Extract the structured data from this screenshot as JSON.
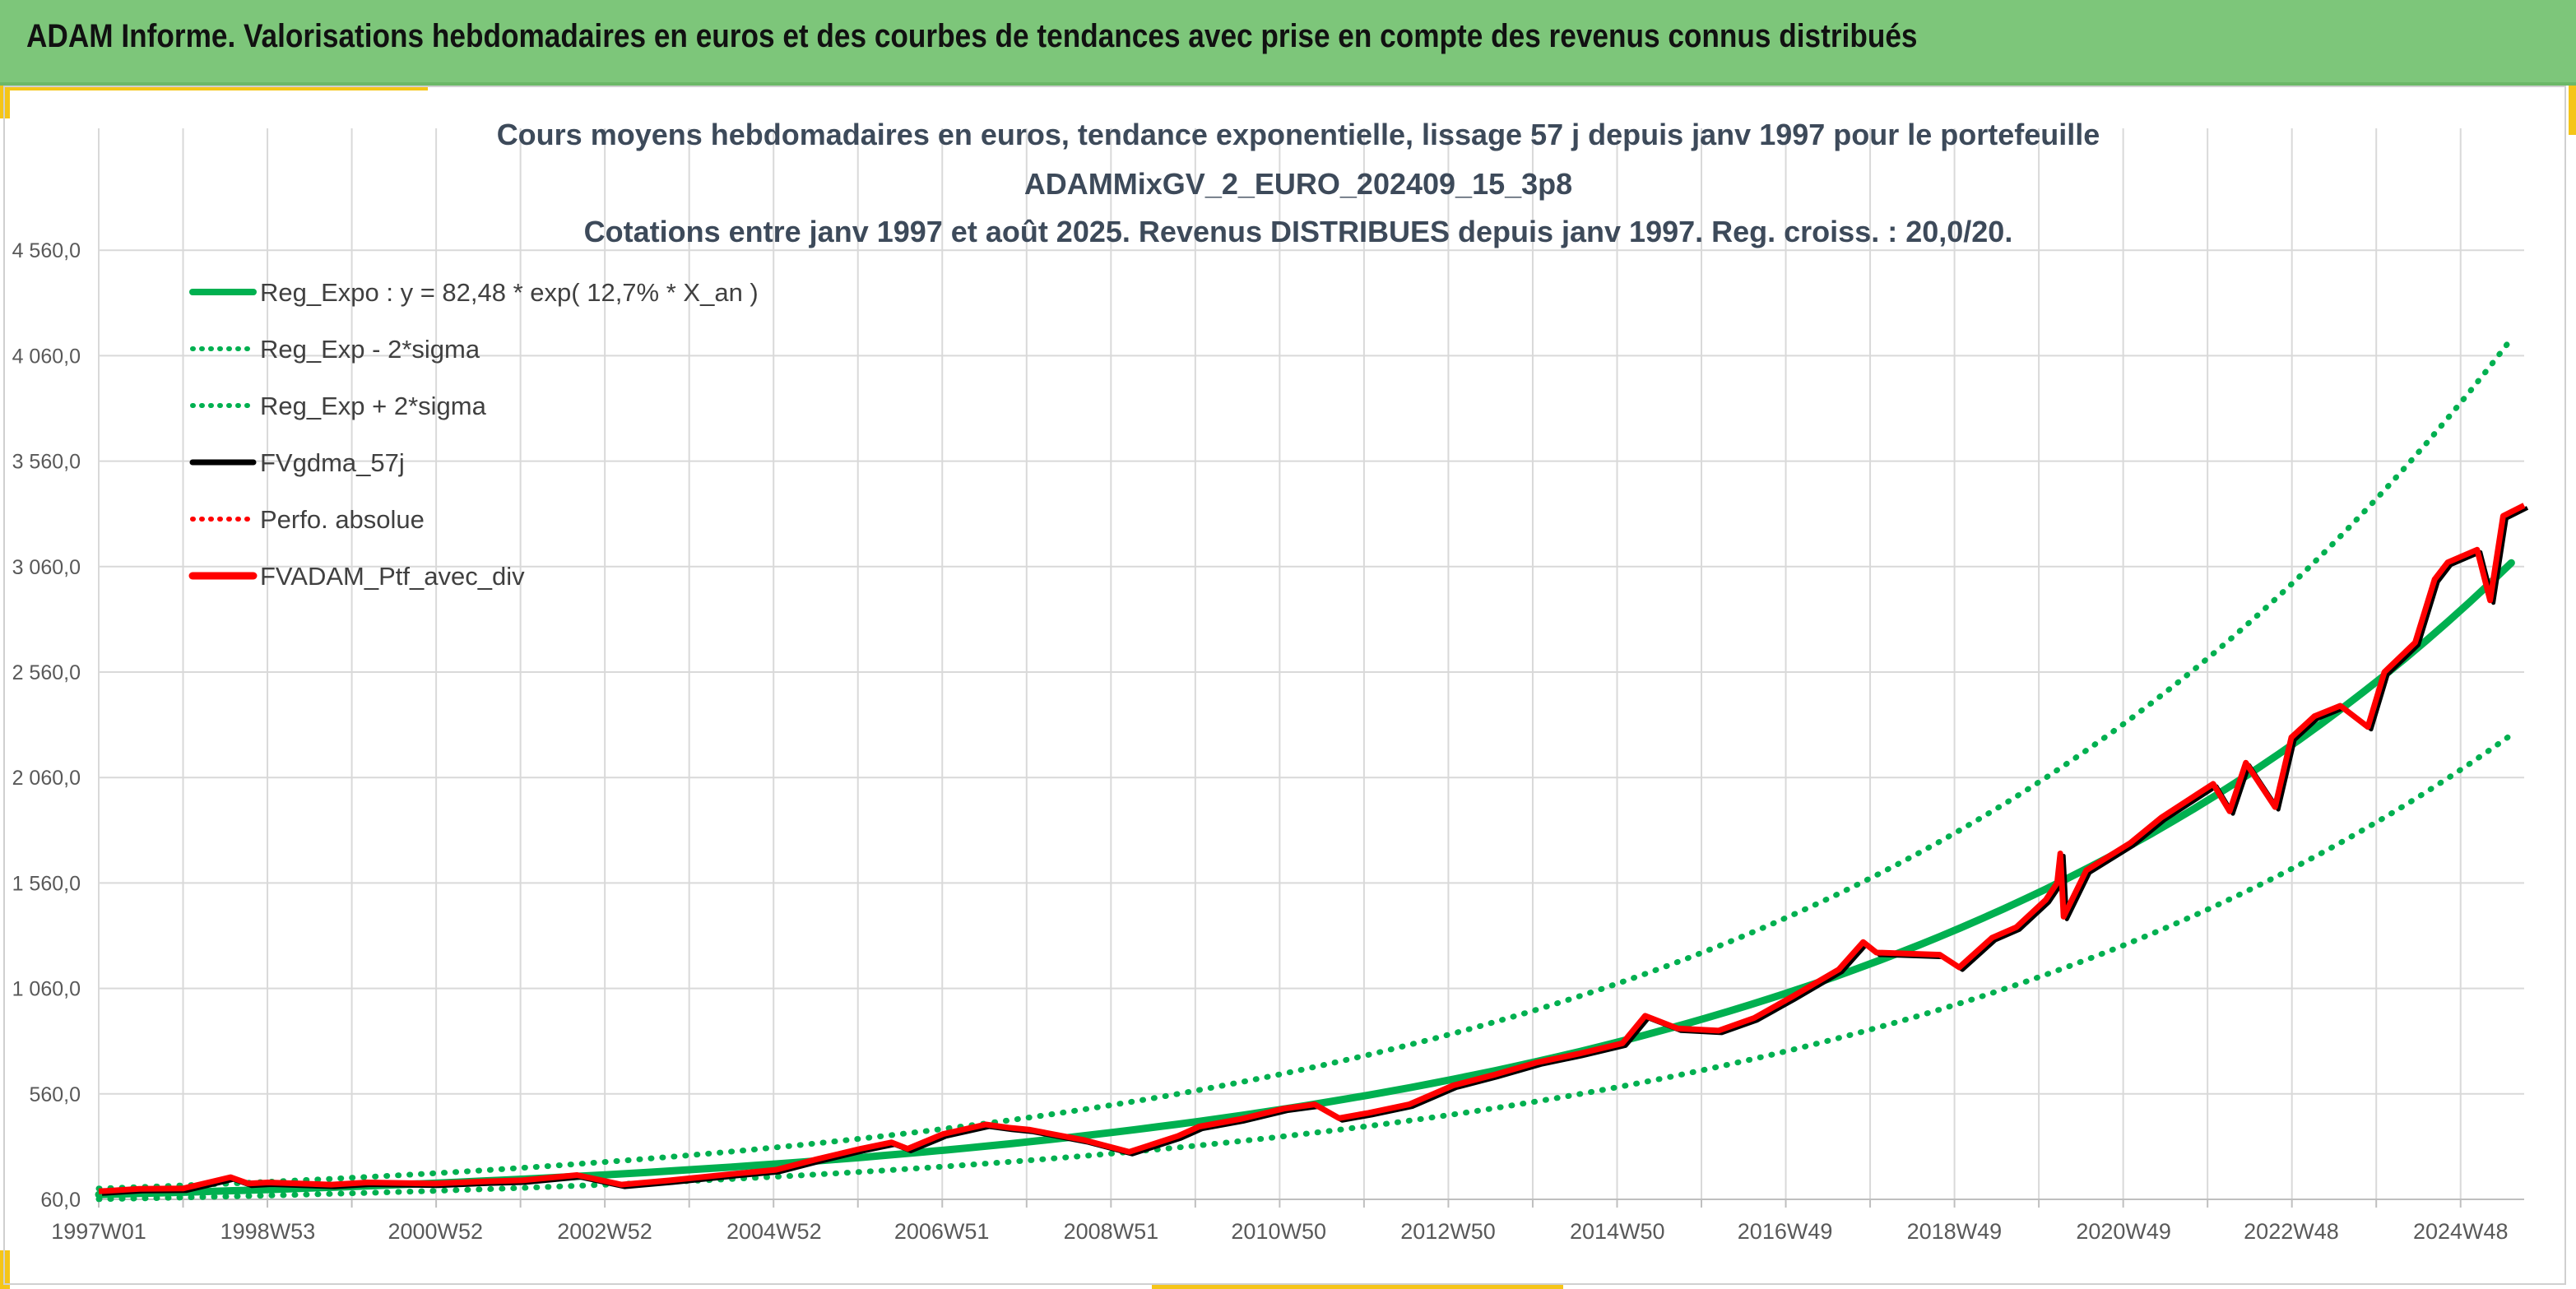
{
  "banner": {
    "title": "ADAM Informe. Valorisations hebdomadaires en euros et des courbes de tendances avec prise en compte des revenus connus distribués"
  },
  "colors": {
    "banner_bg": "#7dc67a",
    "accent": "#f5c518",
    "trend_green": "#00b050",
    "portfolio_red": "#ff0000",
    "smoothed_black": "#000000"
  },
  "chart_data": {
    "type": "line",
    "title_lines": [
      "Cours moyens hebdomadaires en euros, tendance exponentielle, lissage 57 j depuis janv 1997 pour le portefeuille",
      "ADAMMixGV_2_EURO_202409_15_3p8",
      "Cotations entre janv 1997 et août 2025. Revenus DISTRIBUES depuis janv 1997. Reg. croiss. : 20,0/20."
    ],
    "x_range": [
      "1997W01",
      "2025W35"
    ],
    "x_ticks": [
      "1997W01",
      "1998W53",
      "2000W52",
      "2002W52",
      "2004W52",
      "2006W51",
      "2008W51",
      "2010W50",
      "2012W50",
      "2014W50",
      "2016W49",
      "2018W49",
      "2020W49",
      "2022W48",
      "2024W48"
    ],
    "ylim": [
      60,
      5060
    ],
    "y_ticks": [
      "60,0",
      "560,0",
      "1 060,0",
      "1 560,0",
      "2 060,0",
      "2 560,0",
      "3 060,0",
      "3 560,0",
      "4 060,0",
      "4 560,0"
    ],
    "grid": true,
    "legend_position": "top-left",
    "legend": [
      "Reg_Expo : y = 82,48 * exp( 12,7% *  X_an )",
      "Reg_Exp - 2*sigma",
      "Reg_Exp + 2*sigma",
      "FVgdma_57j",
      "Perfo. absolue",
      "FVADAM_Ptf_avec_div"
    ],
    "regression": {
      "a": 82.48,
      "growth_rate": 0.127,
      "lower_factor": 0.735,
      "upper_factor": 1.345
    },
    "series": [
      {
        "name": "FVADAM_Ptf_avec_div",
        "points": [
          [
            "1997W01",
            98
          ],
          [
            "1997W26",
            110
          ],
          [
            "1998W01",
            112
          ],
          [
            "1998W30",
            165
          ],
          [
            "1998W41",
            135
          ],
          [
            "1999W01",
            140
          ],
          [
            "1999W40",
            130
          ],
          [
            "2000W10",
            140
          ],
          [
            "2000W52",
            135
          ],
          [
            "2001W30",
            145
          ],
          [
            "2002W01",
            150
          ],
          [
            "2002W35",
            175
          ],
          [
            "2003W10",
            130
          ],
          [
            "2003W40",
            150
          ],
          [
            "2004W26",
            180
          ],
          [
            "2005W01",
            200
          ],
          [
            "2005W26",
            250
          ],
          [
            "2006W01",
            300
          ],
          [
            "2006W20",
            330
          ],
          [
            "2006W30",
            300
          ],
          [
            "2006W52",
            370
          ],
          [
            "2007W26",
            415
          ],
          [
            "2007W40",
            400
          ],
          [
            "2008W01",
            390
          ],
          [
            "2008W35",
            340
          ],
          [
            "2009W10",
            285
          ],
          [
            "2009W40",
            360
          ],
          [
            "2010W01",
            405
          ],
          [
            "2010W26",
            440
          ],
          [
            "2011W01",
            490
          ],
          [
            "2011W20",
            510
          ],
          [
            "2011W35",
            445
          ],
          [
            "2012W01",
            470
          ],
          [
            "2012W26",
            510
          ],
          [
            "2013W01",
            600
          ],
          [
            "2013W26",
            650
          ],
          [
            "2014W01",
            710
          ],
          [
            "2014W26",
            750
          ],
          [
            "2015W01",
            800
          ],
          [
            "2015W15",
            930
          ],
          [
            "2015W35",
            870
          ],
          [
            "2016W08",
            860
          ],
          [
            "2016W30",
            920
          ],
          [
            "2017W01",
            1020
          ],
          [
            "2017W30",
            1150
          ],
          [
            "2017W45",
            1280
          ],
          [
            "2018W01",
            1230
          ],
          [
            "2018W40",
            1220
          ],
          [
            "2018W52",
            1160
          ],
          [
            "2019W20",
            1300
          ],
          [
            "2019W35",
            1350
          ],
          [
            "2020W01",
            1480
          ],
          [
            "2020W08",
            1560
          ],
          [
            "2020W10",
            1700
          ],
          [
            "2020W12",
            1400
          ],
          [
            "2020W26",
            1620
          ],
          [
            "2021W01",
            1750
          ],
          [
            "2021W20",
            1870
          ],
          [
            "2021W52",
            2030
          ],
          [
            "2022W10",
            1900
          ],
          [
            "2022W20",
            2130
          ],
          [
            "2022W38",
            1920
          ],
          [
            "2022W48",
            2250
          ],
          [
            "2023W10",
            2350
          ],
          [
            "2023W26",
            2400
          ],
          [
            "2023W43",
            2300
          ],
          [
            "2024W01",
            2560
          ],
          [
            "2024W20",
            2700
          ],
          [
            "2024W32",
            3000
          ],
          [
            "2024W40",
            3080
          ],
          [
            "2025W06",
            3140
          ],
          [
            "2025W14",
            2900
          ],
          [
            "2025W22",
            3300
          ],
          [
            "2025W35",
            3350
          ]
        ]
      }
    ]
  }
}
